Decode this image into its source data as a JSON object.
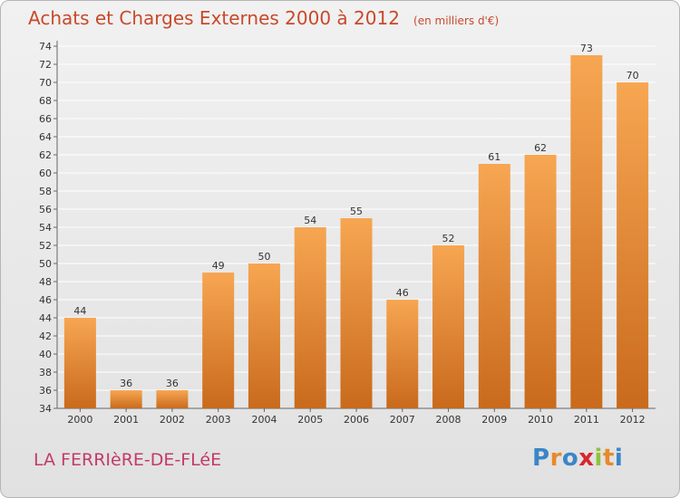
{
  "chart": {
    "title": "Achats et Charges Externes 2000 à 2012",
    "subtitle": "(en milliers d'€)"
  },
  "footer": {
    "commune": "LA FERRIèRE-DE-FLéE",
    "brand_letters": [
      "P",
      "r",
      "o",
      "x",
      "i",
      "t",
      "i"
    ],
    "brand_colors": [
      "#3a86c8",
      "#e8892a",
      "#3a86c8",
      "#d8262e",
      "#8fc43a",
      "#e8892a",
      "#3a86c8"
    ]
  },
  "colors": {
    "title": "#c8492a",
    "bar_light": "#f7a652",
    "bar_dark": "#c96a1c",
    "grid": "#ffffff"
  },
  "chart_data": {
    "type": "bar",
    "categories": [
      "2000",
      "2001",
      "2002",
      "2003",
      "2004",
      "2005",
      "2006",
      "2007",
      "2008",
      "2009",
      "2010",
      "2011",
      "2012"
    ],
    "values": [
      44,
      36,
      36,
      49,
      50,
      54,
      55,
      46,
      52,
      61,
      62,
      73,
      70
    ],
    "ylim": [
      34,
      74
    ],
    "yticks": [
      34,
      36,
      38,
      40,
      42,
      44,
      46,
      48,
      50,
      52,
      54,
      56,
      58,
      60,
      62,
      64,
      66,
      68,
      70,
      72,
      74
    ],
    "grid": true,
    "data_labels": true
  }
}
